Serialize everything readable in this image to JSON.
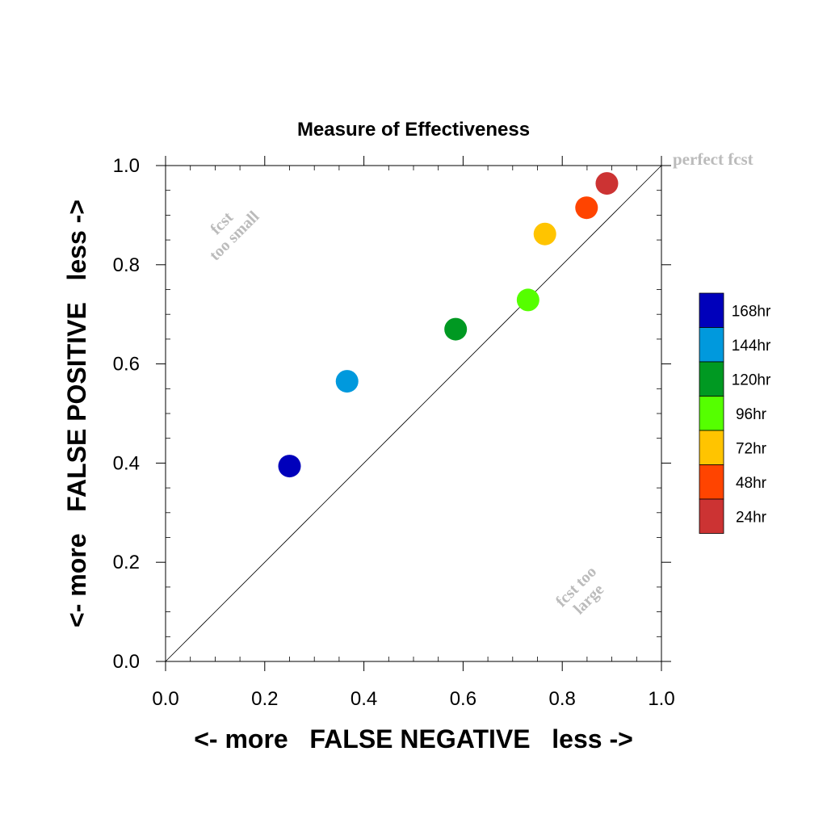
{
  "chart_data": {
    "type": "scatter",
    "title": "Measure of Effectiveness",
    "xlabel": "<- more   FALSE NEGATIVE   less ->",
    "ylabel": "<- more   FALSE POSITIVE   less ->",
    "xlim": [
      0,
      1
    ],
    "ylim": [
      0,
      1
    ],
    "xticks": [
      "0.0",
      "0.2",
      "0.4",
      "0.6",
      "0.8",
      "1.0"
    ],
    "yticks": [
      "0.0",
      "0.2",
      "0.4",
      "0.6",
      "0.8",
      "1.0"
    ],
    "grid": false,
    "diagonal_reference_line": true,
    "legend_placement": "right",
    "annotations": {
      "perfect": "perfect fcst",
      "too_small": [
        "fcst",
        "too small"
      ],
      "too_large": [
        "fcst too",
        "large"
      ]
    },
    "series": [
      {
        "name": "168hr",
        "color": "#0000bb",
        "x": 0.25,
        "y": 0.394
      },
      {
        "name": "144hr",
        "color": "#0099dd",
        "x": 0.366,
        "y": 0.565
      },
      {
        "name": "120hr",
        "color": "#009922",
        "x": 0.585,
        "y": 0.67
      },
      {
        "name": "96hr",
        "color": "#55ff00",
        "x": 0.731,
        "y": 0.729
      },
      {
        "name": "72hr",
        "color": "#ffc400",
        "x": 0.765,
        "y": 0.862
      },
      {
        "name": "48hr",
        "color": "#ff4400",
        "x": 0.849,
        "y": 0.915
      },
      {
        "name": "24hr",
        "color": "#cc3333",
        "x": 0.89,
        "y": 0.964
      }
    ],
    "legend_order": [
      "168hr",
      "144hr",
      "120hr",
      "96hr",
      "72hr",
      "48hr",
      "24hr"
    ]
  }
}
